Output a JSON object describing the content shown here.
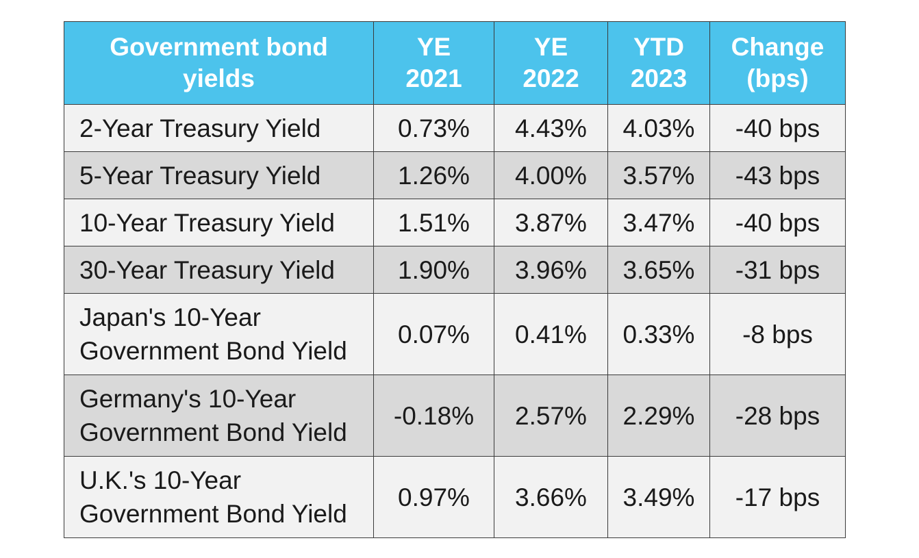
{
  "colors": {
    "header_background": "#4cc3ec",
    "header_text": "#ffffff",
    "row_light": "#f2f2f2",
    "row_dark": "#d9d9d9",
    "border": "#3a3a3a"
  },
  "chart_data": {
    "type": "table",
    "title": "",
    "columns": [
      {
        "lines": [
          "Government bond",
          "yields"
        ]
      },
      {
        "lines": [
          "YE",
          "2021"
        ]
      },
      {
        "lines": [
          "YE",
          "2022"
        ]
      },
      {
        "lines": [
          "YTD",
          "2023"
        ]
      },
      {
        "lines": [
          "Change",
          "(bps)"
        ]
      }
    ],
    "rows": [
      {
        "label_lines": [
          "2-Year Treasury Yield"
        ],
        "values": [
          "0.73%",
          "4.43%",
          "4.03%",
          "-40 bps"
        ]
      },
      {
        "label_lines": [
          "5-Year Treasury Yield"
        ],
        "values": [
          "1.26%",
          "4.00%",
          "3.57%",
          "-43 bps"
        ]
      },
      {
        "label_lines": [
          "10-Year Treasury Yield"
        ],
        "values": [
          "1.51%",
          "3.87%",
          "3.47%",
          "-40 bps"
        ]
      },
      {
        "label_lines": [
          "30-Year Treasury Yield"
        ],
        "values": [
          "1.90%",
          "3.96%",
          "3.65%",
          "-31 bps"
        ]
      },
      {
        "label_lines": [
          "Japan's 10-Year",
          "Government Bond Yield"
        ],
        "values": [
          "0.07%",
          "0.41%",
          "0.33%",
          "-8 bps"
        ]
      },
      {
        "label_lines": [
          "Germany's 10-Year",
          "Government Bond Yield"
        ],
        "values": [
          "-0.18%",
          "2.57%",
          "2.29%",
          "-28 bps"
        ]
      },
      {
        "label_lines": [
          "U.K.'s 10-Year",
          "Government Bond Yield"
        ],
        "values": [
          "0.97%",
          "3.66%",
          "3.49%",
          "-17 bps"
        ]
      }
    ]
  }
}
